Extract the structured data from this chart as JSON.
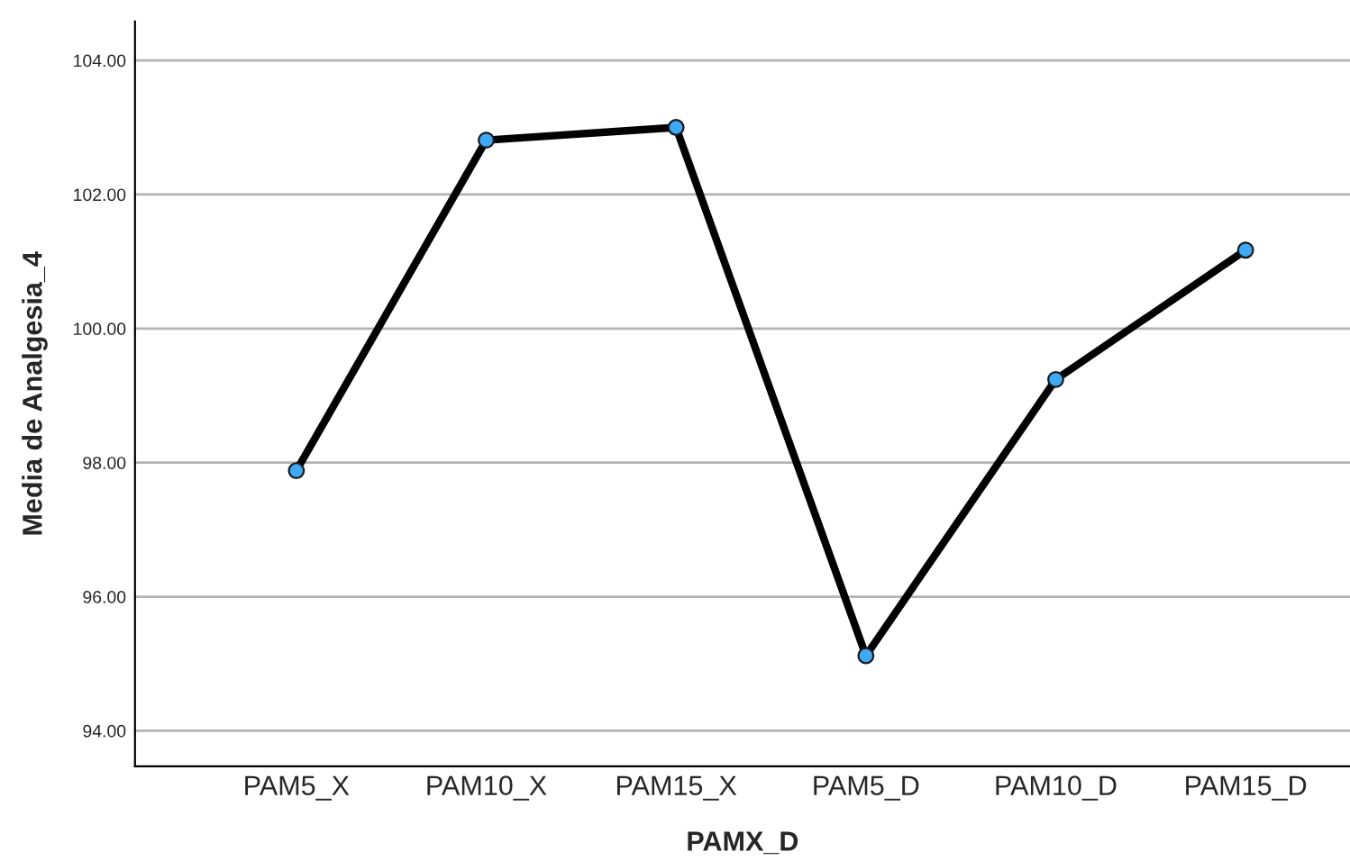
{
  "chart_data": {
    "type": "line",
    "xlabel": "PAMX_D",
    "ylabel": "Media de Analgesia_4",
    "categories": [
      "PAM5_X",
      "PAM10_X",
      "PAM15_X",
      "PAM5_D",
      "PAM10_D",
      "PAM15_D"
    ],
    "series": [
      {
        "color": "#000000",
        "values": [
          97.88,
          102.81,
          103.0,
          95.12,
          99.24,
          101.17
        ]
      }
    ],
    "ylim": [
      93.47,
      104.58
    ],
    "yticks": [
      {
        "value": 94,
        "label": "94.00"
      },
      {
        "value": 96,
        "label": "96.00"
      },
      {
        "value": 98,
        "label": "98.00"
      },
      {
        "value": 100,
        "label": "100.00"
      },
      {
        "value": 102,
        "label": "102.00"
      },
      {
        "value": 104,
        "label": "104.00"
      }
    ],
    "grid": "y",
    "marker": "circle",
    "line_style": "solid",
    "legend": false
  }
}
